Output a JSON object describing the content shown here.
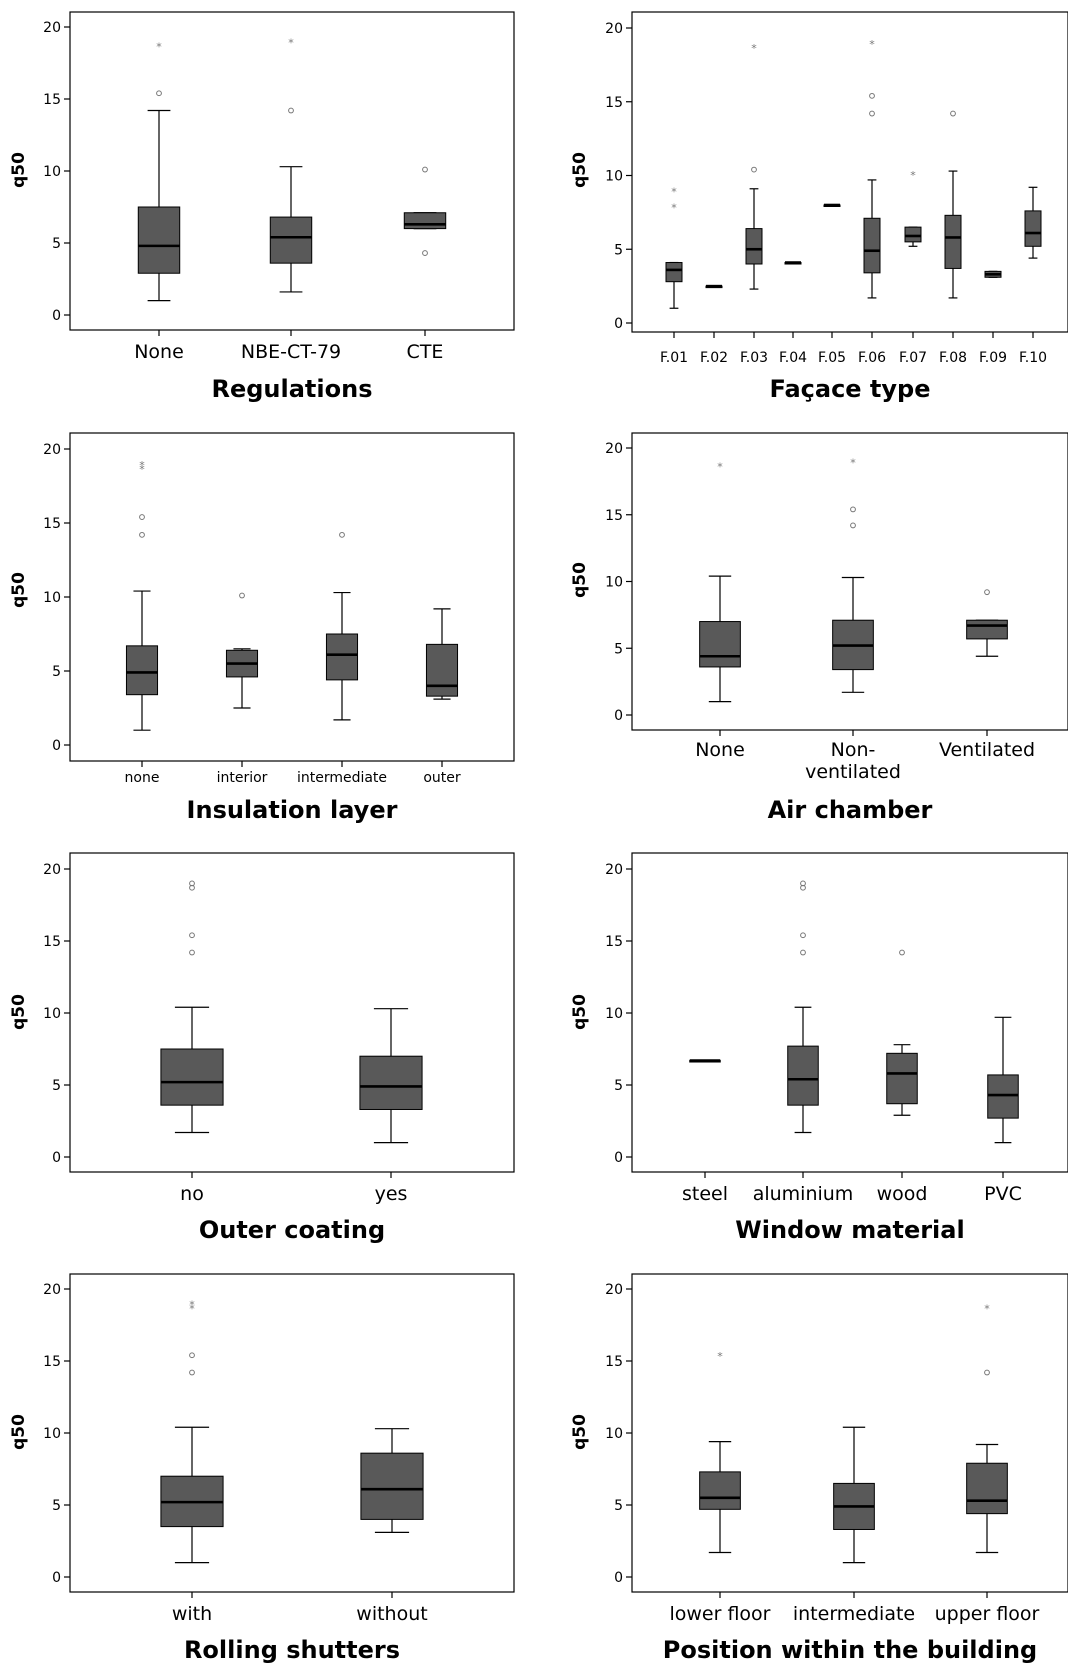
{
  "chart_data": [
    {
      "type": "boxplot",
      "title": "Regulations",
      "ylabel": "q50",
      "xlabel": "Regulations",
      "ylim": [
        -1,
        21
      ],
      "yticks": [
        0,
        5,
        10,
        15,
        20
      ],
      "categories": [
        "None",
        "NBE-CT-79",
        "CTE"
      ],
      "boxes": [
        {
          "low": 1.0,
          "q1": 2.9,
          "median": 4.8,
          "q3": 7.5,
          "high": 14.2,
          "circles": [
            15.4
          ],
          "stars": [
            18.7
          ]
        },
        {
          "low": 1.6,
          "q1": 3.6,
          "median": 5.4,
          "q3": 6.8,
          "high": 10.3,
          "circles": [
            14.2
          ],
          "stars": [
            19.0
          ]
        },
        {
          "low": 6.0,
          "q1": 6.0,
          "median": 6.3,
          "q3": 7.1,
          "high": 7.1,
          "circles": [
            10.1,
            4.3
          ],
          "stars": []
        }
      ]
    },
    {
      "type": "boxplot",
      "title": "Façace type",
      "ylabel": "q50",
      "xlabel": "Façace type",
      "ylim": [
        -1,
        21
      ],
      "yticks": [
        0,
        5,
        10,
        15,
        20
      ],
      "categories": [
        "F.01",
        "F.02",
        "F.03",
        "F.04",
        "F.05",
        "F.06",
        "F.07",
        "F.08",
        "F.09",
        "F.10"
      ],
      "boxes": [
        {
          "low": 1.0,
          "q1": 2.8,
          "median": 3.6,
          "q3": 4.1,
          "high": 4.1,
          "circles": [],
          "stars": [
            7.9,
            9.0
          ]
        },
        {
          "low": 2.5,
          "q1": 2.5,
          "median": 2.5,
          "q3": 2.5,
          "high": 2.5,
          "circles": [],
          "stars": []
        },
        {
          "low": 2.3,
          "q1": 4.0,
          "median": 5.0,
          "q3": 6.4,
          "high": 9.1,
          "circles": [
            10.4
          ],
          "stars": [
            18.7
          ]
        },
        {
          "low": 4.1,
          "q1": 4.1,
          "median": 4.1,
          "q3": 4.1,
          "high": 4.1,
          "circles": [],
          "stars": []
        },
        {
          "low": 8.0,
          "q1": 8.0,
          "median": 8.0,
          "q3": 8.0,
          "high": 8.0,
          "circles": [],
          "stars": []
        },
        {
          "low": 1.7,
          "q1": 3.4,
          "median": 4.9,
          "q3": 7.1,
          "high": 9.7,
          "circles": [
            14.2,
            15.4
          ],
          "stars": [
            19.0
          ]
        },
        {
          "low": 5.2,
          "q1": 5.5,
          "median": 5.9,
          "q3": 6.5,
          "high": 6.5,
          "circles": [],
          "stars": [
            10.1
          ]
        },
        {
          "low": 1.7,
          "q1": 3.7,
          "median": 5.8,
          "q3": 7.3,
          "high": 10.3,
          "circles": [
            14.2
          ],
          "stars": []
        },
        {
          "low": 3.1,
          "q1": 3.1,
          "median": 3.3,
          "q3": 3.5,
          "high": 3.5,
          "circles": [],
          "stars": []
        },
        {
          "low": 4.4,
          "q1": 5.2,
          "median": 6.1,
          "q3": 7.6,
          "high": 9.2,
          "circles": [],
          "stars": []
        }
      ]
    },
    {
      "type": "boxplot",
      "title": "Insulation layer",
      "ylabel": "q50",
      "xlabel": "Insulation layer",
      "ylim": [
        -1,
        21
      ],
      "yticks": [
        0,
        5,
        10,
        15,
        20
      ],
      "categories": [
        "none",
        "interior",
        "intermediate",
        "outer"
      ],
      "boxes": [
        {
          "low": 1.0,
          "q1": 3.4,
          "median": 4.9,
          "q3": 6.7,
          "high": 10.4,
          "circles": [
            14.2,
            15.4
          ],
          "stars": [
            18.7,
            19.0
          ]
        },
        {
          "low": 2.5,
          "q1": 4.6,
          "median": 5.5,
          "q3": 6.4,
          "high": 6.5,
          "circles": [
            10.1
          ],
          "stars": []
        },
        {
          "low": 1.7,
          "q1": 4.4,
          "median": 6.1,
          "q3": 7.5,
          "high": 10.3,
          "circles": [
            14.2
          ],
          "stars": []
        },
        {
          "low": 3.1,
          "q1": 3.3,
          "median": 4.0,
          "q3": 6.8,
          "high": 9.2,
          "circles": [],
          "stars": []
        }
      ]
    },
    {
      "type": "boxplot",
      "title": "Air chamber",
      "ylabel": "q50",
      "xlabel": "Air chamber",
      "ylim": [
        -1,
        21
      ],
      "yticks": [
        0,
        5,
        10,
        15,
        20
      ],
      "categories": [
        "None",
        "Non-\nventilated",
        "Ventilated"
      ],
      "boxes": [
        {
          "low": 1.0,
          "q1": 3.6,
          "median": 4.4,
          "q3": 7.0,
          "high": 10.4,
          "circles": [],
          "stars": [
            18.7
          ]
        },
        {
          "low": 1.7,
          "q1": 3.4,
          "median": 5.2,
          "q3": 7.1,
          "high": 10.3,
          "circles": [
            14.2,
            15.4
          ],
          "stars": [
            19.0
          ]
        },
        {
          "low": 4.4,
          "q1": 5.7,
          "median": 6.7,
          "q3": 7.1,
          "high": 7.1,
          "circles": [
            9.2
          ],
          "stars": []
        }
      ]
    },
    {
      "type": "boxplot",
      "title": "Outer coating",
      "ylabel": "q50",
      "xlabel": "Outer coating",
      "ylim": [
        -1,
        21
      ],
      "yticks": [
        0,
        5,
        10,
        15,
        20
      ],
      "categories": [
        "no",
        "yes"
      ],
      "boxes": [
        {
          "low": 1.7,
          "q1": 3.6,
          "median": 5.2,
          "q3": 7.5,
          "high": 10.4,
          "circles": [
            14.2,
            15.4,
            18.7,
            19.0
          ],
          "stars": []
        },
        {
          "low": 1.0,
          "q1": 3.3,
          "median": 4.9,
          "q3": 7.0,
          "high": 10.3,
          "circles": [],
          "stars": []
        }
      ]
    },
    {
      "type": "boxplot",
      "title": "Window material",
      "ylabel": "q50",
      "xlabel": "Window material",
      "ylim": [
        -1,
        21
      ],
      "yticks": [
        0,
        5,
        10,
        15,
        20
      ],
      "categories": [
        "steel",
        "aluminium",
        "wood",
        "PVC"
      ],
      "boxes": [
        {
          "low": 6.7,
          "q1": 6.7,
          "median": 6.7,
          "q3": 6.7,
          "high": 6.7,
          "circles": [],
          "stars": []
        },
        {
          "low": 1.7,
          "q1": 3.6,
          "median": 5.4,
          "q3": 7.7,
          "high": 10.4,
          "circles": [
            14.2,
            15.4,
            18.7,
            19.0
          ],
          "stars": []
        },
        {
          "low": 2.9,
          "q1": 3.7,
          "median": 5.8,
          "q3": 7.2,
          "high": 7.8,
          "circles": [
            14.2
          ],
          "stars": []
        },
        {
          "low": 1.0,
          "q1": 2.7,
          "median": 4.3,
          "q3": 5.7,
          "high": 9.7,
          "circles": [],
          "stars": []
        }
      ]
    },
    {
      "type": "boxplot",
      "title": "Rolling shutters",
      "ylabel": "q50",
      "xlabel": "Rolling shutters",
      "ylim": [
        -1,
        21
      ],
      "yticks": [
        0,
        5,
        10,
        15,
        20
      ],
      "categories": [
        "with",
        "without"
      ],
      "boxes": [
        {
          "low": 1.0,
          "q1": 3.5,
          "median": 5.2,
          "q3": 7.0,
          "high": 10.4,
          "circles": [
            14.2,
            15.4
          ],
          "stars": [
            18.7,
            19.0
          ]
        },
        {
          "low": 3.1,
          "q1": 4.0,
          "median": 6.1,
          "q3": 8.6,
          "high": 10.3,
          "circles": [],
          "stars": []
        }
      ]
    },
    {
      "type": "boxplot",
      "title": "Position within the building",
      "ylabel": "q50",
      "xlabel": "Position within the building",
      "ylim": [
        -1,
        21
      ],
      "yticks": [
        0,
        5,
        10,
        15,
        20
      ],
      "categories": [
        "lower floor",
        "intermediate",
        "upper floor"
      ],
      "boxes": [
        {
          "low": 1.7,
          "q1": 4.7,
          "median": 5.5,
          "q3": 7.3,
          "high": 9.4,
          "circles": [],
          "stars": [
            15.4
          ]
        },
        {
          "low": 1.0,
          "q1": 3.3,
          "median": 4.9,
          "q3": 6.5,
          "high": 10.4,
          "circles": [],
          "stars": []
        },
        {
          "low": 1.7,
          "q1": 4.4,
          "median": 5.3,
          "q3": 7.9,
          "high": 9.2,
          "circles": [
            14.2
          ],
          "stars": [
            18.7
          ]
        }
      ]
    }
  ],
  "style": {
    "box_fill": "#595959",
    "box_stroke": "#000000",
    "axis_color": "#000000",
    "outlier_color": "#777777"
  }
}
